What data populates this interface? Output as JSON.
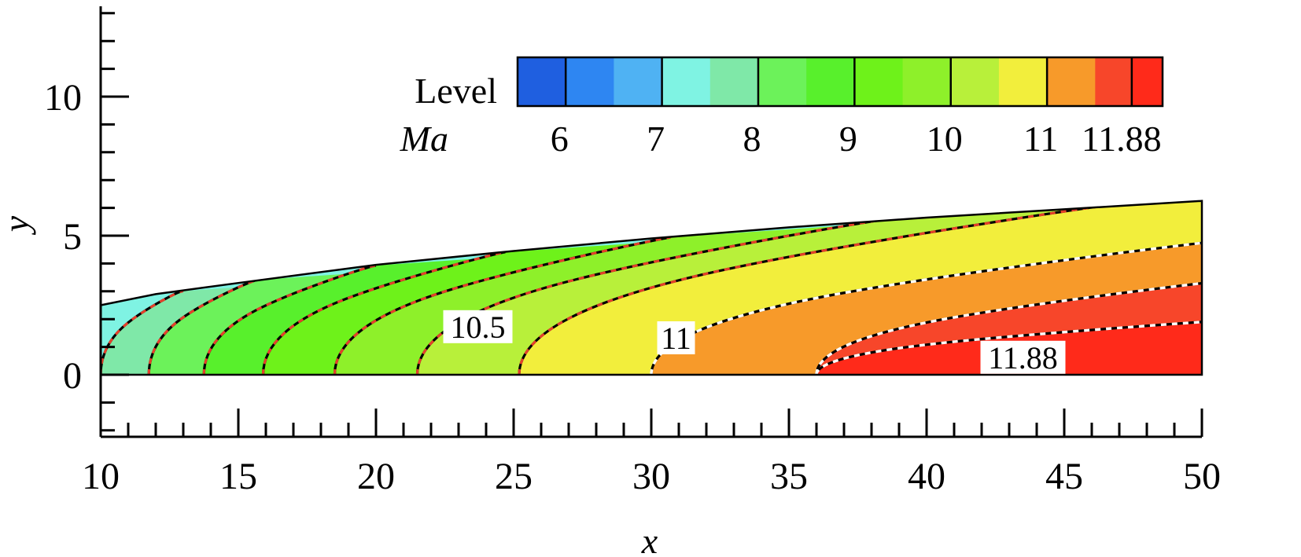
{
  "chart_data": {
    "type": "contour",
    "xlabel": "x",
    "ylabel": "y",
    "xlim": [
      10,
      50
    ],
    "ylim": [
      -2,
      13
    ],
    "xticks": [
      10,
      15,
      20,
      25,
      30,
      35,
      40,
      45,
      50
    ],
    "yticks": [
      0,
      5,
      10
    ],
    "grid": false,
    "colorbar": {
      "placement": "top-right",
      "header": "Level",
      "quantity": "Ma",
      "tick_labels": [
        "6",
        "7",
        "8",
        "9",
        "10",
        "11",
        "11.88"
      ],
      "tick_values": [
        6,
        7,
        8,
        9,
        10,
        11,
        11.88
      ],
      "range": [
        5.5,
        12.2
      ],
      "levels": [
        5.75,
        6.25,
        6.75,
        7.25,
        7.75,
        8.25,
        8.75,
        9.25,
        9.75,
        10.25,
        10.75,
        11.25,
        11.75,
        12.0
      ],
      "colors": [
        "#1f5fe0",
        "#2e86f2",
        "#4fb2f3",
        "#7ff3e3",
        "#7fe8a8",
        "#6cf25a",
        "#58f02c",
        "#6ef21a",
        "#8ef02a",
        "#b8f03a",
        "#f2ee3c",
        "#f79a2a",
        "#f7462a",
        "#ff2a1a"
      ]
    },
    "field": {
      "upper_boundary": [
        [
          10,
          2.5
        ],
        [
          12,
          2.9
        ],
        [
          15,
          3.3
        ],
        [
          20,
          3.95
        ],
        [
          25,
          4.45
        ],
        [
          30,
          4.9
        ],
        [
          35,
          5.3
        ],
        [
          40,
          5.65
        ],
        [
          45,
          5.95
        ],
        [
          50,
          6.25
        ]
      ],
      "band_colors": [
        "#7ff3e3",
        "#7fe8a8",
        "#6cf25a",
        "#58f02c",
        "#6ef21a",
        "#8ef02a",
        "#b8f03a",
        "#f2ee3c",
        "#f79a2a",
        "#f7462a",
        "#ff2a1a"
      ],
      "contours": [
        {
          "x0": 10.0,
          "end": [
            12.8,
            3.0
          ],
          "red": true
        },
        {
          "x0": 11.75,
          "end": [
            15.5,
            3.4
          ],
          "red": true
        },
        {
          "x0": 13.75,
          "end": [
            19.8,
            3.92
          ],
          "red": true
        },
        {
          "x0": 15.9,
          "end": [
            24.5,
            4.4
          ],
          "red": true
        },
        {
          "x0": 18.5,
          "end": [
            30.5,
            4.93
          ],
          "red": true
        },
        {
          "x0": 21.5,
          "end": [
            38.0,
            5.53
          ],
          "red": true
        },
        {
          "x0": 25.2,
          "end": [
            46.0,
            6.03
          ],
          "red": true
        },
        {
          "x0": 30.0,
          "end": [
            50.0,
            4.75
          ],
          "red": false
        },
        {
          "x0": 36.0,
          "end": [
            50.0,
            3.3
          ],
          "red": false
        },
        {
          "x0": 36.0,
          "end": [
            50.0,
            1.9
          ],
          "red": false
        }
      ],
      "contour_labels": [
        {
          "text": "10.5",
          "x": 23.7,
          "y": 1.7
        },
        {
          "text": "11",
          "x": 30.9,
          "y": 1.3
        },
        {
          "text": "11.88",
          "x": 43.5,
          "y": 0.6
        }
      ]
    }
  }
}
